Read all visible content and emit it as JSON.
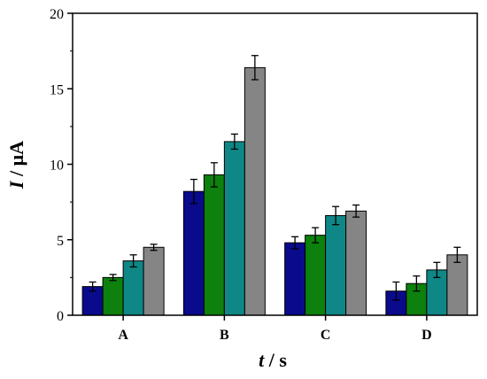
{
  "chart_data": {
    "type": "bar",
    "title": "",
    "xlabel": {
      "symbol": "t",
      "unit": " / s"
    },
    "ylabel": {
      "symbol": "I",
      "unit": " / μA"
    },
    "categories": [
      "A",
      "B",
      "C",
      "D"
    ],
    "ylim": [
      0,
      20
    ],
    "yticks": [
      0,
      5,
      10,
      15,
      20
    ],
    "grid": false,
    "legend": "none",
    "series": [
      {
        "color": "#0a0a8c",
        "values": [
          1.9,
          8.2,
          4.8,
          1.6
        ],
        "errors": [
          0.3,
          0.8,
          0.4,
          0.6
        ]
      },
      {
        "color": "#0d800d",
        "values": [
          2.5,
          9.3,
          5.3,
          2.1
        ],
        "errors": [
          0.2,
          0.8,
          0.5,
          0.5
        ]
      },
      {
        "color": "#0f8787",
        "values": [
          3.6,
          11.5,
          6.6,
          3.0
        ],
        "errors": [
          0.4,
          0.5,
          0.6,
          0.5
        ]
      },
      {
        "color": "#858585",
        "values": [
          4.5,
          16.4,
          6.9,
          4.0
        ],
        "errors": [
          0.2,
          0.8,
          0.4,
          0.5
        ]
      }
    ]
  }
}
